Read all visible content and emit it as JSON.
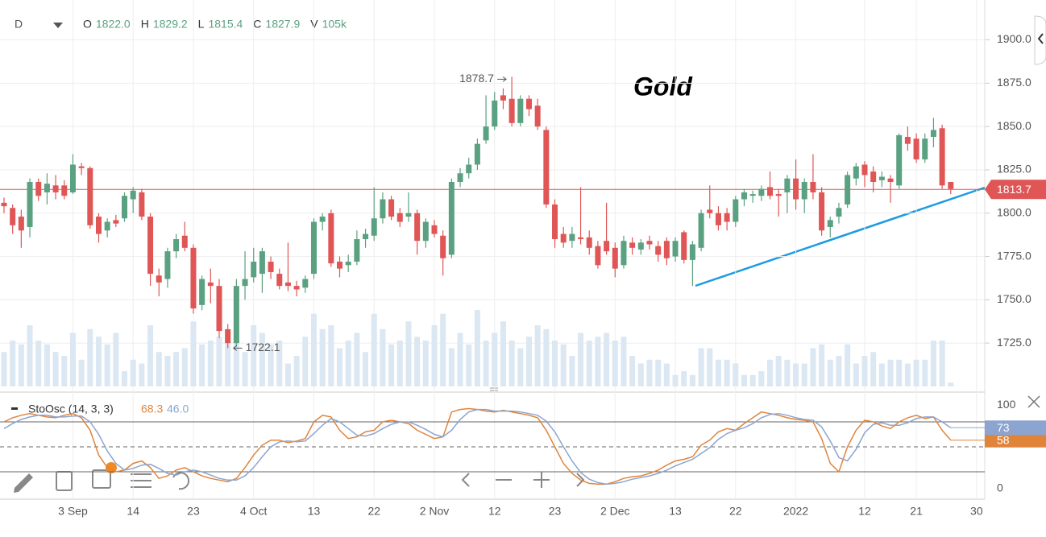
{
  "header": {
    "interval": "D",
    "ohlcv": [
      {
        "key": "O",
        "value": "1822.0"
      },
      {
        "key": "H",
        "value": "1829.2"
      },
      {
        "key": "L",
        "value": "1815.4"
      },
      {
        "key": "C",
        "value": "1827.9"
      },
      {
        "key": "V",
        "value": "105k"
      }
    ]
  },
  "chart_data": {
    "type": "candlestick",
    "title": "Gold",
    "categories": [
      null,
      null,
      null,
      null,
      null,
      null,
      null,
      null,
      "3 Sep",
      null,
      null,
      null,
      null,
      null,
      null,
      "14",
      null,
      null,
      null,
      null,
      null,
      null,
      "23",
      null,
      null,
      null,
      null,
      null,
      null,
      "4 Oct",
      null,
      null,
      null,
      null,
      null,
      null,
      "13",
      null,
      null,
      null,
      null,
      null,
      null,
      "22",
      null,
      null,
      null,
      null,
      null,
      null,
      "2 Nov",
      null,
      null,
      null,
      null,
      null,
      null,
      "12",
      null,
      null,
      null,
      null,
      null,
      null,
      "23",
      null,
      null,
      null,
      null,
      null,
      null,
      "2 Dec",
      null,
      null,
      null,
      null,
      null,
      null,
      "13",
      null,
      null,
      null,
      null,
      null,
      null,
      "22",
      null,
      null,
      null,
      null,
      null,
      null,
      "2022",
      null,
      null,
      null,
      null,
      null,
      null,
      null,
      "12",
      null,
      null,
      null,
      null,
      null,
      "21",
      null,
      null,
      null,
      null,
      null,
      null,
      "30"
    ],
    "open": [
      1806,
      1803,
      1798,
      1792,
      1818,
      1812,
      1816,
      1816,
      1812,
      1827,
      1826,
      1798,
      1790,
      1796,
      1797,
      1808,
      1812,
      1798,
      1764,
      1762,
      1778,
      1787,
      1780,
      1747,
      1760,
      1758,
      1733,
      1725,
      1758,
      1763,
      1765,
      1772,
      1765,
      1760,
      1758,
      1757,
      1765,
      1795,
      1800,
      1772,
      1770,
      1772,
      1785,
      1787,
      1797,
      1808,
      1800,
      1798,
      1800,
      1784,
      1793,
      1787,
      1776,
      1818,
      1823,
      1828,
      1842,
      1850,
      1868,
      1866,
      1852,
      1866,
      1862,
      1848,
      1805,
      1788,
      1784,
      1786,
      1786,
      1781,
      1784,
      1780,
      1770,
      1783,
      1779,
      1784,
      1781,
      1784,
      1775,
      1789,
      1773,
      1780,
      1802,
      1800,
      1800,
      1795,
      1808,
      1810,
      1810,
      1815,
      1811,
      1812,
      1820,
      1808,
      1818,
      1812,
      1792,
      1798,
      1805,
      1820,
      1828,
      1824,
      1819,
      1820,
      1816,
      1844,
      1843,
      1831,
      1844,
      1849,
      1818,
      null,
      null,
      null
    ],
    "high": [
      1809,
      1805,
      1802,
      1820,
      1820,
      1823,
      1822,
      1819,
      1834,
      1829,
      1827,
      1800,
      1797,
      1799,
      1812,
      1815,
      1814,
      1800,
      1768,
      1780,
      1788,
      1795,
      1782,
      1764,
      1768,
      1762,
      1736,
      1762,
      1778,
      1780,
      1780,
      1775,
      1768,
      1783,
      1761,
      1764,
      1797,
      1800,
      1802,
      1775,
      1776,
      1790,
      1791,
      1815,
      1812,
      1810,
      1803,
      1812,
      1802,
      1797,
      1796,
      1790,
      1820,
      1826,
      1832,
      1843,
      1868,
      1870,
      1872,
      1878.7,
      1868,
      1868,
      1866,
      1850,
      1808,
      1792,
      1792,
      1815,
      1790,
      1784,
      1806,
      1783,
      1787,
      1786,
      1785,
      1787,
      1784,
      1786,
      1786,
      1790,
      1784,
      1802,
      1816,
      1804,
      1803,
      1810,
      1814,
      1813,
      1816,
      1824,
      1814,
      1822,
      1831,
      1820,
      1834,
      1815,
      1798,
      1806,
      1824,
      1829,
      1830,
      1827,
      1824,
      1822,
      1846,
      1850,
      1846,
      1846,
      1855,
      1851,
      1818,
      null,
      null,
      null
    ],
    "low": [
      1800,
      1788,
      1780,
      1786,
      1807,
      1805,
      1808,
      1808,
      1811,
      1822,
      1791,
      1783,
      1786,
      1792,
      1795,
      1800,
      1796,
      1758,
      1752,
      1757,
      1774,
      1778,
      1742,
      1744,
      1748,
      1728,
      1722.1,
      1723,
      1750,
      1760,
      1754,
      1762,
      1756,
      1755,
      1752,
      1754,
      1762,
      1790,
      1769,
      1763,
      1766,
      1770,
      1780,
      1784,
      1794,
      1796,
      1792,
      1795,
      1776,
      1780,
      1786,
      1764,
      1774,
      1815,
      1820,
      1825,
      1840,
      1848,
      1860,
      1850,
      1850,
      1856,
      1848,
      1803,
      1780,
      1780,
      1780,
      1782,
      1776,
      1768,
      1776,
      1763,
      1768,
      1776,
      1776,
      1779,
      1772,
      1770,
      1772,
      1771,
      1758,
      1778,
      1797,
      1790,
      1790,
      1792,
      1804,
      1806,
      1807,
      1808,
      1798,
      1800,
      1802,
      1800,
      1808,
      1787,
      1786,
      1794,
      1803,
      1816,
      1815,
      1812,
      1815,
      1806,
      1814,
      1836,
      1829,
      1829,
      1838,
      1814,
      1811,
      null,
      null,
      null
    ],
    "close": [
      1804,
      1793,
      1790,
      1818,
      1810,
      1817,
      1812,
      1810,
      1828,
      1826,
      1793,
      1788,
      1795,
      1794,
      1810,
      1813,
      1798,
      1765,
      1760,
      1778,
      1785,
      1780,
      1745,
      1762,
      1758,
      1732,
      1725,
      1758,
      1762,
      1772,
      1778,
      1766,
      1758,
      1758,
      1756,
      1762,
      1795,
      1798,
      1771,
      1768,
      1772,
      1785,
      1788,
      1797,
      1808,
      1798,
      1795,
      1800,
      1784,
      1795,
      1788,
      1774,
      1818,
      1823,
      1828,
      1840,
      1850,
      1865,
      1865,
      1852,
      1866,
      1860,
      1850,
      1805,
      1785,
      1783,
      1788,
      1785,
      1780,
      1770,
      1778,
      1768,
      1784,
      1780,
      1783,
      1782,
      1776,
      1774,
      1784,
      1773,
      1782,
      1800,
      1800,
      1793,
      1795,
      1808,
      1812,
      1811,
      1814,
      1810,
      1810,
      1820,
      1808,
      1818,
      1812,
      1790,
      1796,
      1803,
      1822,
      1827,
      1822,
      1818,
      1821,
      1818,
      1845,
      1840,
      1831,
      1843,
      1848,
      1816,
      1814,
      null,
      null,
      null
    ],
    "volume": [
      45,
      60,
      55,
      80,
      60,
      55,
      45,
      40,
      70,
      35,
      75,
      65,
      55,
      70,
      20,
      35,
      30,
      80,
      45,
      40,
      45,
      50,
      85,
      55,
      60,
      65,
      75,
      70,
      45,
      80,
      70,
      55,
      60,
      30,
      40,
      65,
      95,
      75,
      80,
      50,
      60,
      70,
      45,
      95,
      75,
      55,
      60,
      85,
      65,
      60,
      80,
      95,
      50,
      70,
      55,
      100,
      60,
      70,
      85,
      60,
      50,
      65,
      80,
      75,
      60,
      55,
      40,
      70,
      60,
      65,
      70,
      60,
      65,
      40,
      30,
      35,
      35,
      30,
      15,
      20,
      15,
      50,
      50,
      35,
      35,
      30,
      15,
      15,
      20,
      35,
      40,
      35,
      30,
      30,
      50,
      55,
      35,
      40,
      55,
      30,
      40,
      45,
      30,
      35,
      35,
      30,
      35,
      35,
      60,
      60,
      5,
      null,
      null,
      null
    ],
    "up_color": "#5aa181",
    "down_color": "#e05555",
    "volume_color": "#dbe7f2",
    "ylim": [
      1700,
      1923
    ],
    "yticks": [
      {
        "value": 1725,
        "label": "1725.0"
      },
      {
        "value": 1750,
        "label": "1750.0"
      },
      {
        "value": 1775,
        "label": "1775.0"
      },
      {
        "value": 1800,
        "label": "1800.0"
      },
      {
        "value": 1825,
        "label": "1825.0"
      },
      {
        "value": 1850,
        "label": "1850.0"
      },
      {
        "value": 1875,
        "label": "1875.0"
      },
      {
        "value": 1900,
        "label": "1900.0"
      }
    ],
    "grid": true,
    "last_price": 1813.7,
    "last_price_color": "#e05555",
    "max_annotation": 1878.7,
    "min_annotation": 1722.1,
    "indicator": {
      "name": "StoOsc (14, 3, 3)",
      "k_hover": "68.3",
      "d_hover": "46.0",
      "ylim": [
        -13,
        113
      ],
      "yticks": [
        0,
        100
      ],
      "levels": [
        20,
        50,
        80
      ],
      "series": [
        {
          "color": "#e0843a",
          "values": [
            80,
            85,
            88,
            90,
            88,
            86,
            85,
            88,
            90,
            85,
            70,
            40,
            25,
            20,
            22,
            30,
            33,
            25,
            12,
            15,
            22,
            25,
            20,
            15,
            12,
            10,
            8,
            12,
            25,
            40,
            52,
            58,
            58,
            55,
            57,
            60,
            80,
            88,
            86,
            70,
            60,
            62,
            68,
            70,
            80,
            82,
            80,
            78,
            70,
            65,
            60,
            62,
            92,
            95,
            96,
            95,
            93,
            92,
            94,
            92,
            90,
            88,
            85,
            70,
            50,
            30,
            18,
            10,
            6,
            5,
            5,
            8,
            12,
            14,
            15,
            18,
            22,
            28,
            33,
            35,
            38,
            52,
            58,
            68,
            72,
            70,
            78,
            85,
            92,
            90,
            88,
            85,
            83,
            82,
            80,
            60,
            30,
            20,
            50,
            70,
            82,
            80,
            75,
            72,
            80,
            85,
            88,
            84,
            86,
            70,
            58,
            null,
            null,
            null
          ]
        },
        {
          "color": "#8ca5d0",
          "values": [
            72,
            78,
            83,
            86,
            88,
            88,
            86,
            86,
            87,
            87,
            80,
            65,
            45,
            30,
            22,
            24,
            28,
            29,
            24,
            18,
            16,
            20,
            22,
            20,
            16,
            12,
            10,
            10,
            15,
            25,
            38,
            50,
            56,
            57,
            56,
            57,
            66,
            76,
            84,
            80,
            72,
            64,
            63,
            66,
            72,
            77,
            80,
            80,
            76,
            71,
            65,
            62,
            70,
            83,
            92,
            95,
            95,
            93,
            93,
            93,
            92,
            90,
            88,
            81,
            68,
            50,
            33,
            19,
            11,
            7,
            5,
            6,
            8,
            11,
            13,
            15,
            18,
            22,
            27,
            31,
            35,
            42,
            49,
            59,
            66,
            70,
            73,
            78,
            85,
            89,
            90,
            88,
            85,
            83,
            82,
            74,
            57,
            37,
            33,
            47,
            67,
            77,
            79,
            76,
            76,
            79,
            84,
            86,
            86,
            80,
            73,
            null,
            null,
            null
          ]
        }
      ]
    }
  }
}
